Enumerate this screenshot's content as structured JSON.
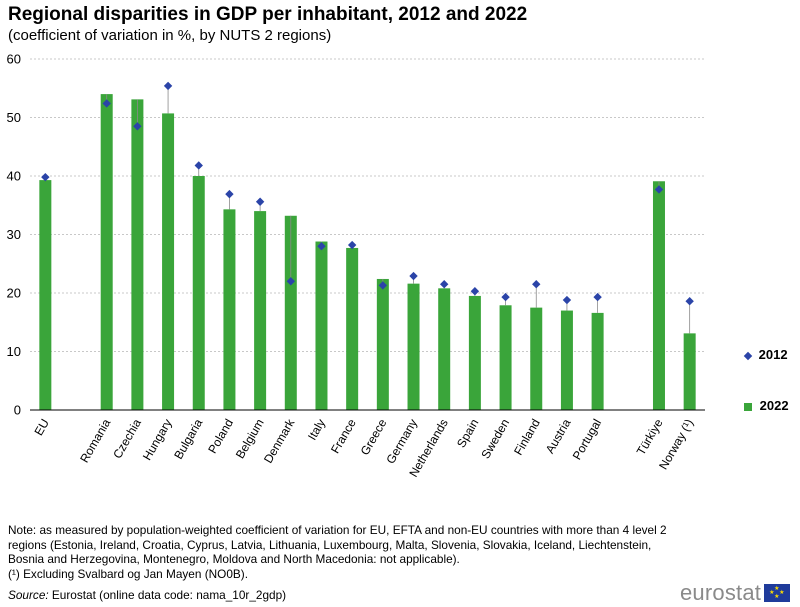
{
  "header": {
    "title": "Regional disparities in GDP per inhabitant, 2012 and 2022",
    "subtitle": "(coefficient of variation in %, by NUTS  2 regions)"
  },
  "legend": {
    "series_2012": "2012",
    "series_2022": "2022"
  },
  "notes": {
    "note": "Note: as measured by population-weighted coefficient of variation for EU, EFTA and non-EU countries with more than 4 level 2 regions (Estonia, Ireland, Croatia, Cyprus, Latvia, Lithuania, Luxembourg, Malta, Slovenia, Slovakia, Iceland, Liechtenstein, Bosnia and Herzegovina, Montenegro, Moldova and North Macedonia: not applicable).",
    "footnote": "(¹) Excluding Svalbard og Jan Mayen (NO0B).",
    "source_label": "Source:",
    "source_text": " Eurostat (online data code: nama_10r_2gdp)"
  },
  "logo": {
    "text": "eurostat"
  },
  "colors": {
    "bar_2022": "#3aa53a",
    "marker_2012": "#2b44a8",
    "grid": "#c8c8c8"
  },
  "chart_data": {
    "type": "bar",
    "title": "Regional disparities in GDP per inhabitant, 2012 and 2022",
    "xlabel": "",
    "ylabel": "",
    "ylim": [
      0,
      60
    ],
    "yticks": [
      0,
      10,
      20,
      30,
      40,
      50,
      60
    ],
    "grid": true,
    "legend_position": "right",
    "categories": [
      "EU",
      "",
      "Romania",
      "Czechia",
      "Hungary",
      "Bulgaria",
      "Poland",
      "Belgium",
      "Denmark",
      "Italy",
      "France",
      "Greece",
      "Germany",
      "Netherlands",
      "Spain",
      "Sweden",
      "Finland",
      "Austria",
      "Portugal",
      "",
      "Türkiye",
      "Norway (¹)"
    ],
    "series": [
      {
        "name": "2022",
        "kind": "bar",
        "values": [
          39.3,
          null,
          54.0,
          53.1,
          50.7,
          40.0,
          34.3,
          34.0,
          33.2,
          28.8,
          27.7,
          22.4,
          21.6,
          20.8,
          19.5,
          17.9,
          17.5,
          17.0,
          16.6,
          null,
          39.1,
          13.1
        ]
      },
      {
        "name": "2012",
        "kind": "marker",
        "values": [
          39.8,
          null,
          52.4,
          48.5,
          55.4,
          41.8,
          36.9,
          35.6,
          22.0,
          28.0,
          28.2,
          21.3,
          22.9,
          21.5,
          20.3,
          19.3,
          21.5,
          18.8,
          19.3,
          null,
          37.7,
          18.6
        ]
      }
    ]
  }
}
